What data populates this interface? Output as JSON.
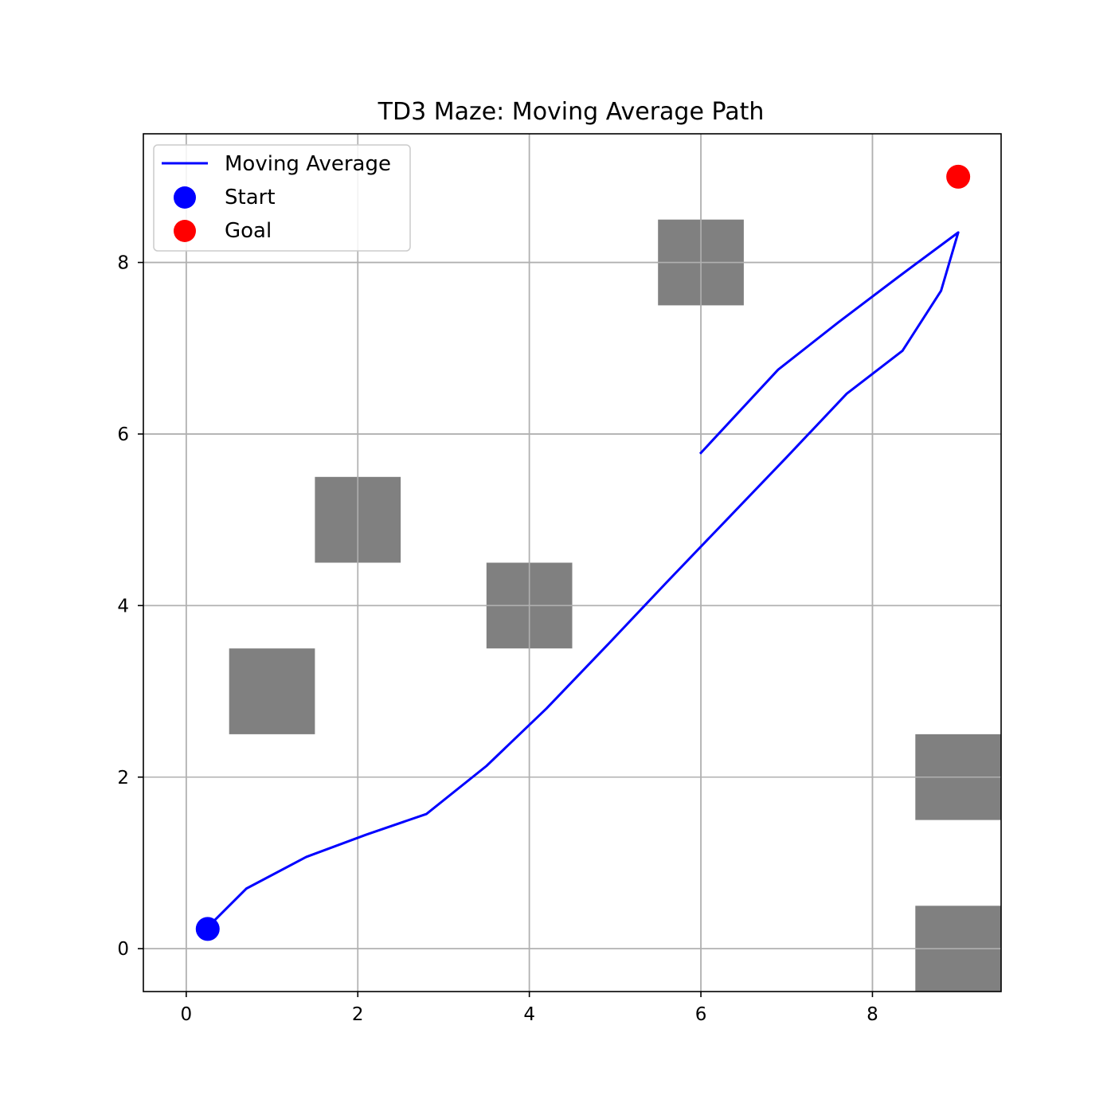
{
  "chart_data": {
    "type": "line",
    "title": "TD3 Maze: Moving Average Path",
    "xlabel": "",
    "ylabel": "",
    "xlim": [
      -0.5,
      9.5
    ],
    "ylim": [
      -0.5,
      9.5
    ],
    "xticks": [
      0,
      2,
      4,
      6,
      8
    ],
    "yticks": [
      0,
      2,
      4,
      6,
      8
    ],
    "grid": true,
    "legend": {
      "position": "upper-left",
      "entries": [
        {
          "label": "Moving Average",
          "marker": "line",
          "color": "#0000ff"
        },
        {
          "label": "Start",
          "marker": "circle",
          "color": "#0000ff"
        },
        {
          "label": "Goal",
          "marker": "circle",
          "color": "#ff0000"
        }
      ]
    },
    "series": [
      {
        "name": "Moving Average",
        "color": "#0000ff",
        "points": [
          [
            0.25,
            0.25
          ],
          [
            0.7,
            0.7
          ],
          [
            1.4,
            1.07
          ],
          [
            2.1,
            1.33
          ],
          [
            2.8,
            1.57
          ],
          [
            3.5,
            2.13
          ],
          [
            4.2,
            2.8
          ],
          [
            4.9,
            3.53
          ],
          [
            5.6,
            4.27
          ],
          [
            6.3,
            5.0
          ],
          [
            7.0,
            5.73
          ],
          [
            7.7,
            6.47
          ],
          [
            8.35,
            6.97
          ],
          [
            8.8,
            7.67
          ],
          [
            9.0,
            8.35
          ],
          [
            8.3,
            7.83
          ],
          [
            7.6,
            7.3
          ],
          [
            6.9,
            6.75
          ],
          [
            6.0,
            5.78
          ]
        ]
      }
    ],
    "markers": [
      {
        "name": "Start",
        "x": 0.25,
        "y": 0.23,
        "color": "#0000ff"
      },
      {
        "name": "Goal",
        "x": 9.0,
        "y": 9.0,
        "color": "#ff0000"
      }
    ],
    "obstacles": [
      {
        "center": [
          1,
          3
        ],
        "color": "#808080"
      },
      {
        "center": [
          2,
          5
        ],
        "color": "#808080"
      },
      {
        "center": [
          4,
          4
        ],
        "color": "#808080"
      },
      {
        "center": [
          6,
          8
        ],
        "color": "#808080"
      },
      {
        "center": [
          9,
          2
        ],
        "color": "#808080"
      },
      {
        "center": [
          9,
          0
        ],
        "color": "#808080"
      }
    ],
    "obstacle_size": 1.0,
    "colors": {
      "grid": "#b0b0b0",
      "axes": "#000000",
      "background": "#ffffff"
    }
  }
}
